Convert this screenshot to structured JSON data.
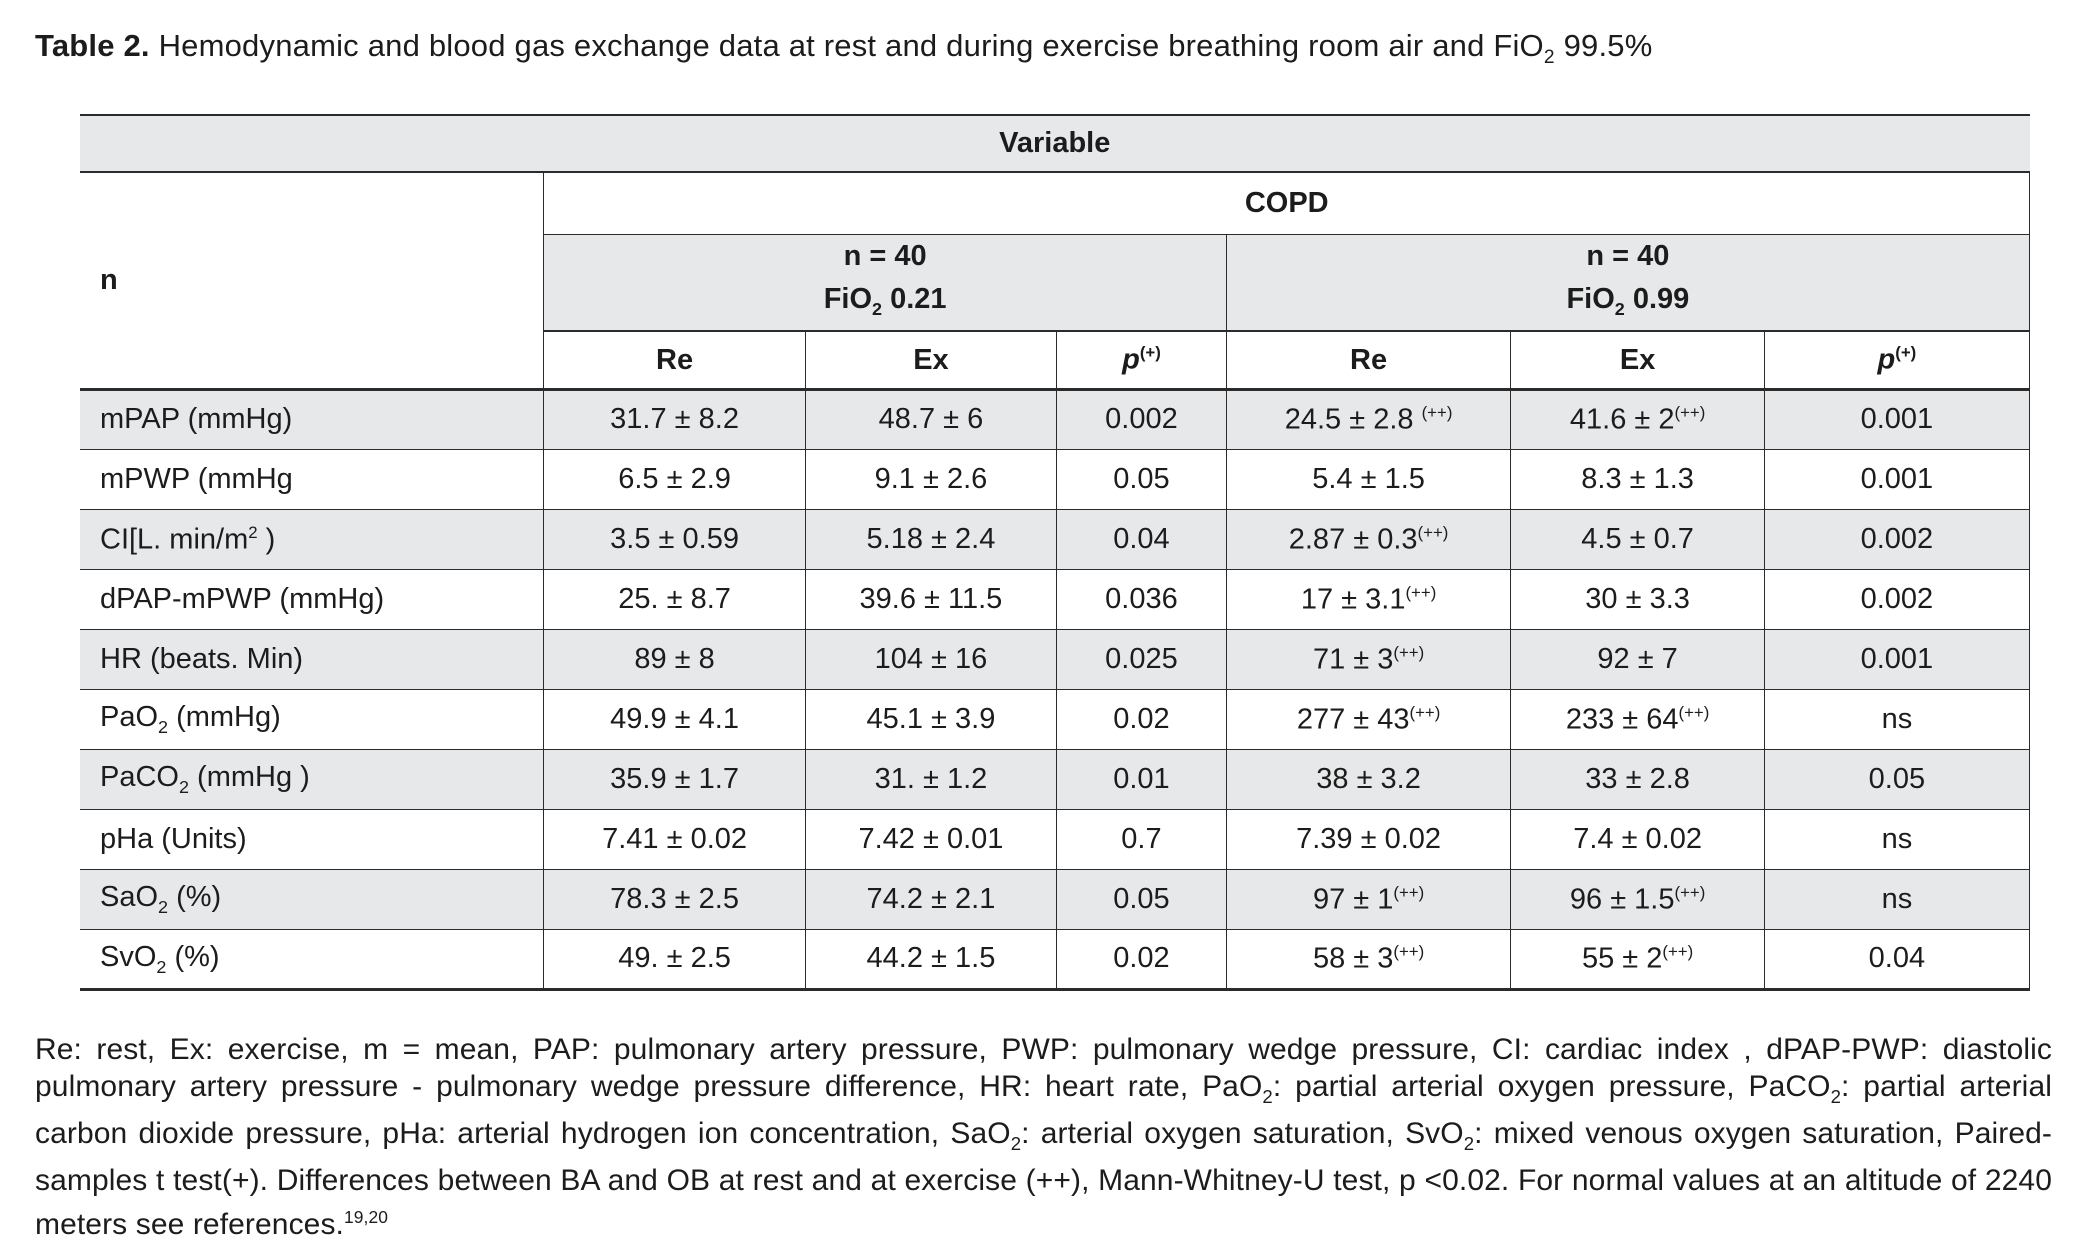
{
  "title": {
    "prefix": "Table 2.",
    "text": "Hemodynamic and blood gas exchange data at rest and during exercise breathing room air and FiO~2~ 99.5%"
  },
  "table": {
    "variable_header": "Variable",
    "n_header": "n",
    "group_header": "COPD",
    "subgroups": [
      {
        "line1": "n = 40",
        "line2": "FiO~2~ 0.21"
      },
      {
        "line1": "n = 40",
        "line2": "FiO~2~ 0.99"
      }
    ],
    "column_headers": [
      "Re",
      "Ex",
      "*p*^(+)^",
      "Re",
      "Ex",
      "*p*^(+)^"
    ],
    "rows": [
      {
        "label": "mPAP (mmHg)",
        "values": [
          "31.7 ± 8.2",
          "48.7 ± 6",
          "0.002",
          "24.5 ± 2.8 ^(++)^",
          "41.6 ± 2^(++)^",
          "0.001"
        ]
      },
      {
        "label": "mPWP (mmHg",
        "values": [
          "6.5 ± 2.9",
          "9.1 ± 2.6",
          "0.05",
          "5.4 ± 1.5",
          "8.3 ± 1.3",
          "0.001"
        ]
      },
      {
        "label": "CI[L. min/m^2^ )",
        "values": [
          "3.5 ± 0.59",
          "5.18 ± 2.4",
          "0.04",
          "2.87 ± 0.3^(++)^",
          "4.5 ± 0.7",
          "0.002"
        ]
      },
      {
        "label": "dPAP-mPWP (mmHg)",
        "values": [
          "25. ± 8.7",
          "39.6 ± 11.5",
          "0.036",
          "17 ± 3.1^(++)^",
          "30 ± 3.3",
          "0.002"
        ]
      },
      {
        "label": "HR (beats. Min)",
        "values": [
          "89 ± 8",
          "104 ± 16",
          "0.025",
          "71 ± 3^(++)^",
          "92 ± 7",
          "0.001"
        ]
      },
      {
        "label": "PaO~2~ (mmHg)",
        "values": [
          "49.9 ± 4.1",
          "45.1 ± 3.9",
          "0.02",
          "277 ± 43^(++)^",
          "233 ± 64^(++)^",
          "ns"
        ]
      },
      {
        "label": "PaCO~2~ (mmHg )",
        "values": [
          "35.9 ± 1.7",
          "31. ± 1.2",
          "0.01",
          "38 ± 3.2",
          "33 ± 2.8",
          "0.05"
        ]
      },
      {
        "label": "pHa (Units)",
        "values": [
          "7.41 ± 0.02",
          "7.42 ± 0.01",
          "0.7",
          "7.39 ± 0.02",
          "7.4 ± 0.02",
          "ns"
        ]
      },
      {
        "label": "SaO~2~ (%)",
        "values": [
          "78.3 ± 2.5",
          "74.2 ± 2.1",
          "0.05",
          "97 ± 1^(++)^",
          "96 ± 1.5^(++)^",
          "ns"
        ]
      },
      {
        "label": "SvO~2~ (%)",
        "values": [
          "49. ± 2.5",
          "44.2 ± 1.5",
          "0.02",
          "58 ± 3^(++)^",
          "55 ± 2^(++)^",
          "0.04"
        ]
      }
    ]
  },
  "footnote": "Re: rest, Ex: exercise, m = mean, PAP: pulmonary artery pressure, PWP: pulmonary wedge pressure, CI: cardiac index , dPAP-PWP: diastolic pulmonary artery pressure - pulmonary wedge pressure difference, HR: heart rate, PaO~2~: partial arterial oxygen pressure, PaCO~2~: partial arterial carbon dioxide pressure, pHa: arterial hydrogen ion concentration, SaO~2~: arterial oxygen saturation, SvO~2~: mixed venous oxygen saturation, Paired-samples t test(+). Differences between BA and OB at rest and at exercise (++), Mann-Whitney-U test, p <0.02. For normal values at an altitude of 2240 meters see references.^19,20^",
  "colors": {
    "shade": "#e7e8e9",
    "border": "#2b2b2b",
    "text": "#1c1c1c"
  }
}
